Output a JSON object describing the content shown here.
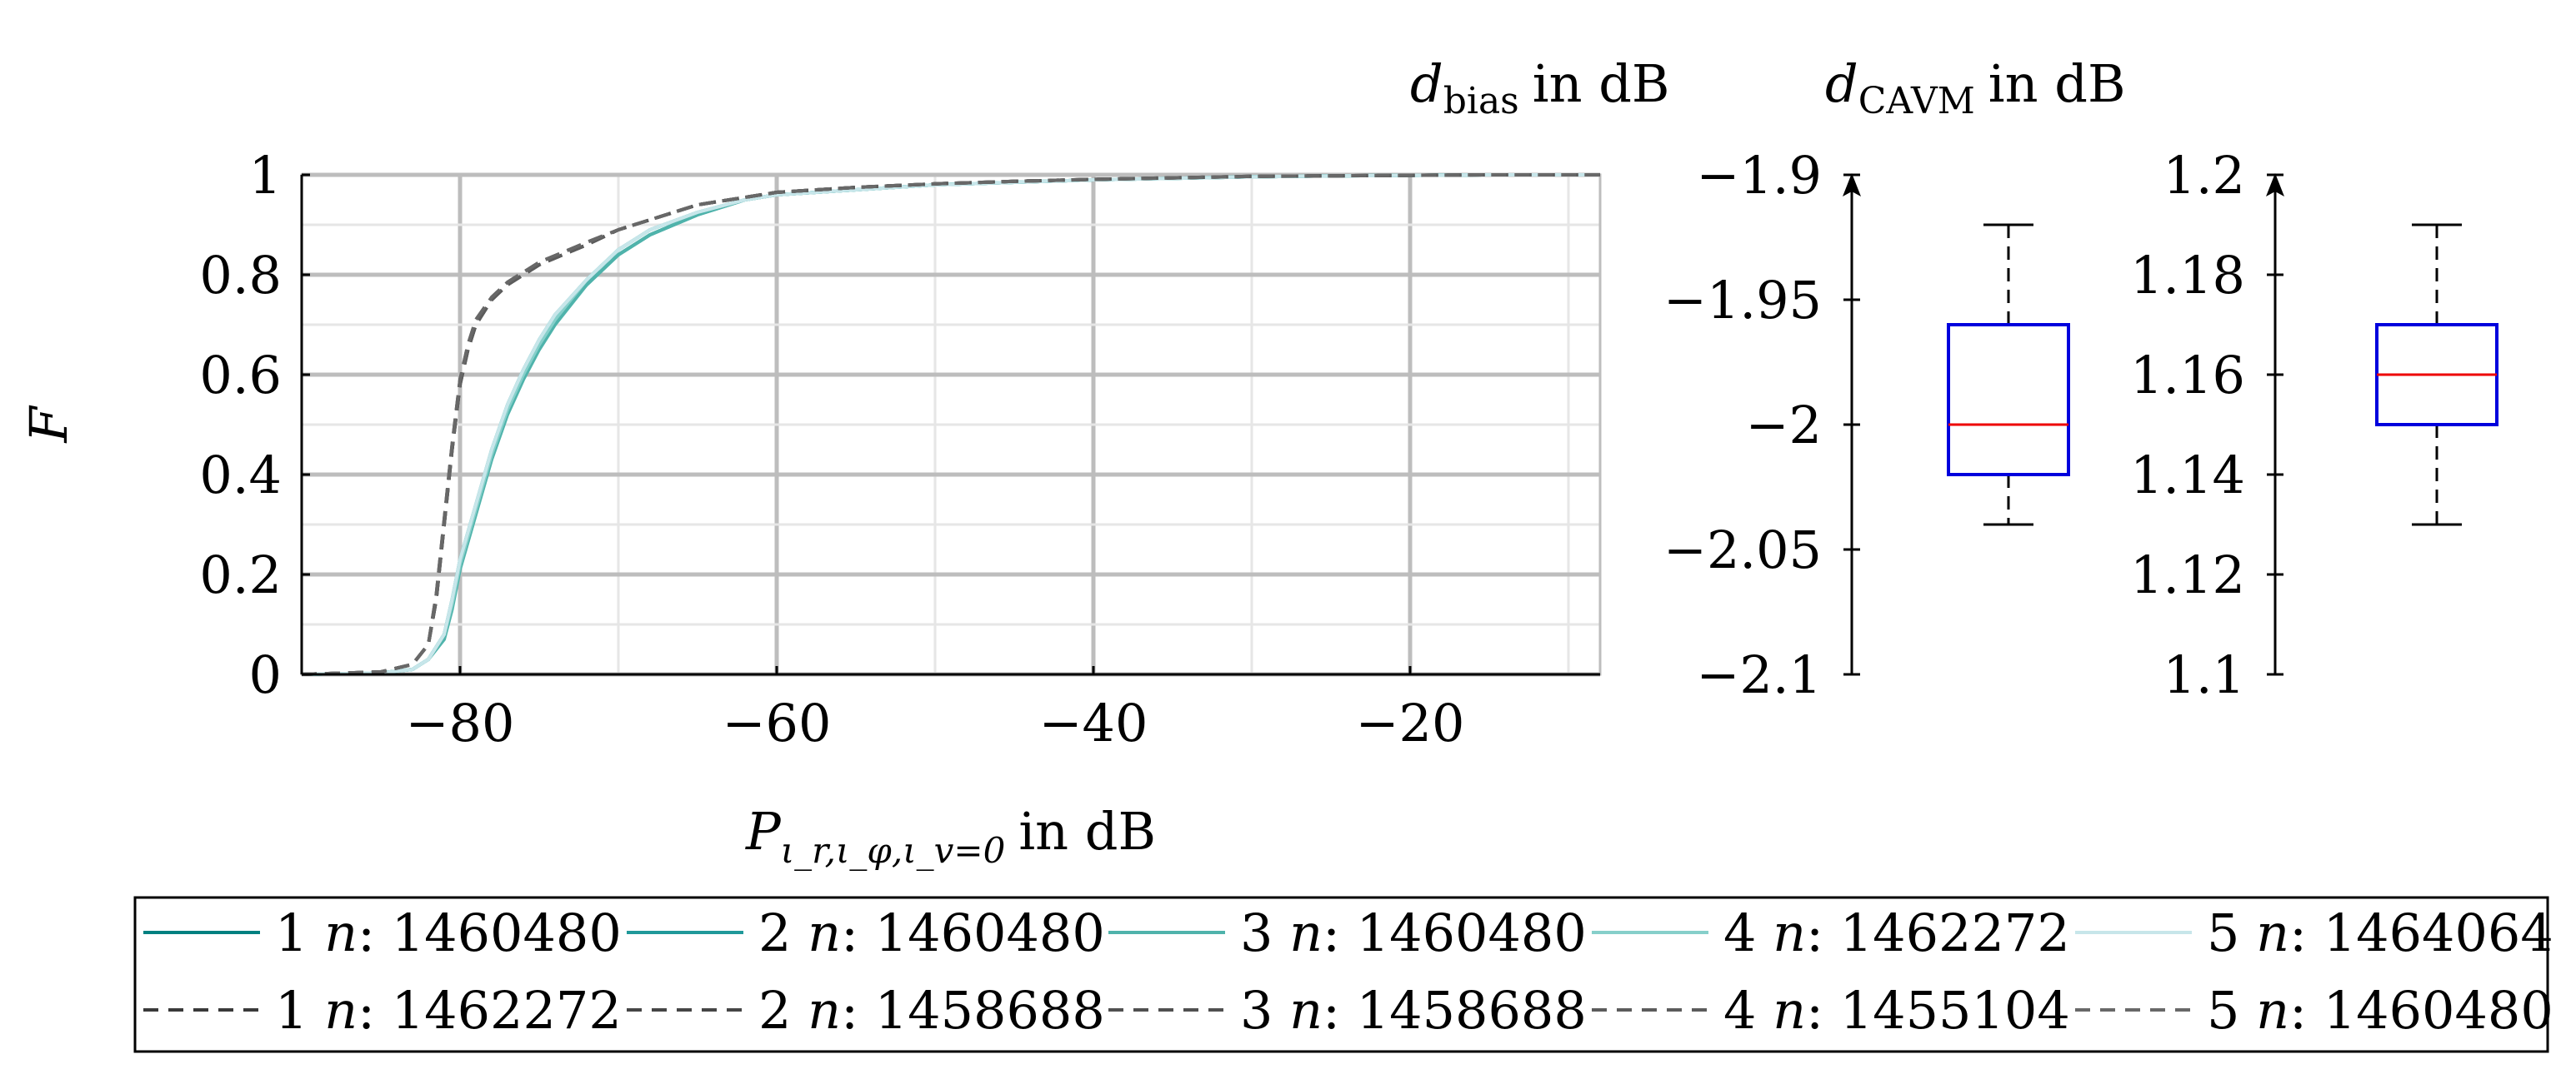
{
  "chart_data": [
    {
      "type": "line",
      "ylabel": "F",
      "xlabel": {
        "base": "P",
        "subscript": "ι_r,ι_φ,ι_v=0",
        "suffix": "in dB"
      },
      "xlim": [
        -90,
        -8
      ],
      "ylim": [
        0,
        1
      ],
      "xticks": [
        -80,
        -60,
        -40,
        -20
      ],
      "xtick_labels": [
        "−80",
        "−60",
        "−40",
        "−20"
      ],
      "yticks": [
        0,
        0.2,
        0.4,
        0.6,
        0.8,
        1
      ],
      "ytick_labels": [
        "0",
        "0.2",
        "0.4",
        "0.6",
        "0.8",
        "1"
      ],
      "grid": true,
      "legend_position": "bottom",
      "legend_columns": 5,
      "series": [
        {
          "name": "1 n: 1460480",
          "color": "#008080",
          "dash": "solid",
          "x": [
            -90,
            -85,
            -83,
            -82,
            -81,
            -80.5,
            -80,
            -79,
            -78,
            -77,
            -76,
            -75,
            -74,
            -72,
            -70,
            -68,
            -65,
            -62,
            -60,
            -55,
            -50,
            -45,
            -40,
            -35,
            -30,
            -25,
            -20,
            -15,
            -10,
            -8
          ],
          "y": [
            0,
            0.003,
            0.01,
            0.03,
            0.08,
            0.14,
            0.22,
            0.33,
            0.44,
            0.53,
            0.6,
            0.66,
            0.71,
            0.78,
            0.84,
            0.88,
            0.92,
            0.95,
            0.96,
            0.97,
            0.98,
            0.985,
            0.99,
            0.993,
            0.996,
            0.998,
            0.999,
            1.0,
            1.0,
            1.0
          ]
        },
        {
          "name": "2 n: 1460480",
          "color": "#20999a",
          "dash": "solid",
          "x": [
            -90,
            -85,
            -83,
            -82,
            -81,
            -80.5,
            -80,
            -79,
            -78,
            -77,
            -76,
            -75,
            -74,
            -72,
            -70,
            -68,
            -65,
            -62,
            -60,
            -55,
            -50,
            -45,
            -40,
            -35,
            -30,
            -25,
            -20,
            -15,
            -10,
            -8
          ],
          "y": [
            0,
            0.003,
            0.01,
            0.03,
            0.08,
            0.15,
            0.23,
            0.34,
            0.45,
            0.54,
            0.61,
            0.67,
            0.72,
            0.79,
            0.85,
            0.89,
            0.925,
            0.95,
            0.96,
            0.97,
            0.98,
            0.985,
            0.99,
            0.993,
            0.996,
            0.998,
            0.999,
            1.0,
            1.0,
            1.0
          ]
        },
        {
          "name": "3 n: 1460480",
          "color": "#4fb3ab",
          "dash": "solid",
          "x": [
            -90,
            -85,
            -83,
            -82,
            -81,
            -80.5,
            -80,
            -79,
            -78,
            -77,
            -76,
            -75,
            -74,
            -72,
            -70,
            -68,
            -65,
            -62,
            -60,
            -55,
            -50,
            -45,
            -40,
            -35,
            -30,
            -25,
            -20,
            -15,
            -10,
            -8
          ],
          "y": [
            0,
            0.003,
            0.01,
            0.03,
            0.07,
            0.13,
            0.21,
            0.32,
            0.43,
            0.52,
            0.59,
            0.65,
            0.7,
            0.78,
            0.84,
            0.88,
            0.92,
            0.95,
            0.96,
            0.97,
            0.98,
            0.985,
            0.99,
            0.993,
            0.996,
            0.998,
            0.999,
            1.0,
            1.0,
            1.0
          ]
        },
        {
          "name": "4 n: 1462272",
          "color": "#86cfca",
          "dash": "solid",
          "x": [
            -90,
            -85,
            -83,
            -82,
            -81,
            -80.5,
            -80,
            -79,
            -78,
            -77,
            -76,
            -75,
            -74,
            -72,
            -70,
            -68,
            -65,
            -62,
            -60,
            -55,
            -50,
            -45,
            -40,
            -35,
            -30,
            -25,
            -20,
            -15,
            -10,
            -8
          ],
          "y": [
            0,
            0.003,
            0.01,
            0.03,
            0.08,
            0.14,
            0.22,
            0.33,
            0.44,
            0.53,
            0.6,
            0.66,
            0.71,
            0.79,
            0.85,
            0.89,
            0.925,
            0.95,
            0.96,
            0.97,
            0.98,
            0.985,
            0.99,
            0.993,
            0.996,
            0.998,
            0.999,
            1.0,
            1.0,
            1.0
          ]
        },
        {
          "name": "5 n: 1464064",
          "color": "#c7e6ea",
          "dash": "solid",
          "x": [
            -90,
            -85,
            -83,
            -82,
            -81,
            -80.5,
            -80,
            -79,
            -78,
            -77,
            -76,
            -75,
            -74,
            -72,
            -70,
            -68,
            -65,
            -62,
            -60,
            -55,
            -50,
            -45,
            -40,
            -35,
            -30,
            -25,
            -20,
            -15,
            -10,
            -8
          ],
          "y": [
            0,
            0.003,
            0.01,
            0.03,
            0.08,
            0.15,
            0.23,
            0.34,
            0.45,
            0.54,
            0.61,
            0.67,
            0.72,
            0.79,
            0.85,
            0.89,
            0.925,
            0.95,
            0.96,
            0.97,
            0.98,
            0.985,
            0.99,
            0.993,
            0.996,
            0.998,
            0.999,
            1.0,
            1.0,
            1.0
          ]
        },
        {
          "name": "1 n: 1462272",
          "color": "#3a3a3a",
          "dash": "dashed",
          "x": [
            -90,
            -85,
            -83,
            -82,
            -81.5,
            -81,
            -80.5,
            -80,
            -79.5,
            -79,
            -78,
            -77,
            -76,
            -75,
            -72,
            -70,
            -68,
            -65,
            -62,
            -60,
            -55,
            -50,
            -45,
            -40,
            -35,
            -30,
            -25,
            -20,
            -15,
            -10,
            -8
          ],
          "y": [
            0,
            0.005,
            0.02,
            0.06,
            0.15,
            0.3,
            0.45,
            0.58,
            0.65,
            0.7,
            0.75,
            0.78,
            0.8,
            0.82,
            0.86,
            0.89,
            0.91,
            0.94,
            0.955,
            0.965,
            0.975,
            0.982,
            0.987,
            0.991,
            0.994,
            0.997,
            0.998,
            0.999,
            1.0,
            1.0,
            1.0
          ]
        },
        {
          "name": "2 n: 1458688",
          "color": "#454545",
          "dash": "dashed",
          "x": [
            -90,
            -85,
            -83,
            -82,
            -81.5,
            -81,
            -80.5,
            -80,
            -79.5,
            -79,
            -78,
            -77,
            -76,
            -75,
            -72,
            -70,
            -68,
            -65,
            -62,
            -60,
            -55,
            -50,
            -45,
            -40,
            -35,
            -30,
            -25,
            -20,
            -15,
            -10,
            -8
          ],
          "y": [
            0,
            0.005,
            0.02,
            0.06,
            0.16,
            0.31,
            0.46,
            0.59,
            0.66,
            0.71,
            0.755,
            0.785,
            0.805,
            0.825,
            0.865,
            0.89,
            0.91,
            0.94,
            0.955,
            0.965,
            0.975,
            0.982,
            0.987,
            0.991,
            0.994,
            0.997,
            0.998,
            0.999,
            1.0,
            1.0,
            1.0
          ]
        },
        {
          "name": "3 n: 1458688",
          "color": "#505050",
          "dash": "dashed",
          "x": [
            -90,
            -85,
            -83,
            -82,
            -81.5,
            -81,
            -80.5,
            -80,
            -79.5,
            -79,
            -78,
            -77,
            -76,
            -75,
            -72,
            -70,
            -68,
            -65,
            -62,
            -60,
            -55,
            -50,
            -45,
            -40,
            -35,
            -30,
            -25,
            -20,
            -15,
            -10,
            -8
          ],
          "y": [
            0,
            0.005,
            0.02,
            0.06,
            0.15,
            0.3,
            0.45,
            0.58,
            0.65,
            0.7,
            0.75,
            0.78,
            0.8,
            0.82,
            0.86,
            0.89,
            0.91,
            0.94,
            0.955,
            0.965,
            0.975,
            0.982,
            0.987,
            0.991,
            0.994,
            0.997,
            0.998,
            0.999,
            1.0,
            1.0,
            1.0
          ]
        },
        {
          "name": "4 n: 1455104",
          "color": "#5c5c5c",
          "dash": "dashed",
          "x": [
            -90,
            -85,
            -83,
            -82,
            -81.5,
            -81,
            -80.5,
            -80,
            -79.5,
            -79,
            -78,
            -77,
            -76,
            -75,
            -72,
            -70,
            -68,
            -65,
            -62,
            -60,
            -55,
            -50,
            -45,
            -40,
            -35,
            -30,
            -25,
            -20,
            -15,
            -10,
            -8
          ],
          "y": [
            0,
            0.005,
            0.02,
            0.06,
            0.15,
            0.3,
            0.45,
            0.58,
            0.65,
            0.7,
            0.75,
            0.78,
            0.8,
            0.82,
            0.86,
            0.89,
            0.91,
            0.94,
            0.955,
            0.965,
            0.975,
            0.982,
            0.987,
            0.991,
            0.994,
            0.997,
            0.998,
            0.999,
            1.0,
            1.0,
            1.0
          ]
        },
        {
          "name": "5 n: 1460480",
          "color": "#686868",
          "dash": "dashed",
          "x": [
            -90,
            -85,
            -83,
            -82,
            -81.5,
            -81,
            -80.5,
            -80,
            -79.5,
            -79,
            -78,
            -77,
            -76,
            -75,
            -72,
            -70,
            -68,
            -65,
            -62,
            -60,
            -55,
            -50,
            -45,
            -40,
            -35,
            -30,
            -25,
            -20,
            -15,
            -10,
            -8
          ],
          "y": [
            0,
            0.005,
            0.02,
            0.06,
            0.16,
            0.31,
            0.46,
            0.59,
            0.66,
            0.71,
            0.755,
            0.785,
            0.805,
            0.825,
            0.865,
            0.89,
            0.91,
            0.94,
            0.955,
            0.965,
            0.975,
            0.982,
            0.987,
            0.991,
            0.994,
            0.997,
            0.998,
            0.999,
            1.0,
            1.0,
            1.0
          ]
        }
      ]
    },
    {
      "type": "box",
      "title": {
        "base": "d",
        "subscript": "bias",
        "suffix": "in dB"
      },
      "ylim": [
        -2.1,
        -1.9
      ],
      "yticks": [
        -1.9,
        -1.95,
        -2,
        -2.05,
        -2.1
      ],
      "ytick_labels": [
        "−1.9",
        "−1.95",
        "−2",
        "−2.05",
        "−2.1"
      ],
      "box": {
        "whisker_high": -1.92,
        "q3": -1.96,
        "median": -2.0,
        "q1": -2.02,
        "whisker_low": -2.04
      },
      "box_color": "#0000dd",
      "median_color": "#ee0000"
    },
    {
      "type": "box",
      "title": {
        "base": "d",
        "subscript": "CAVM",
        "suffix": "in dB"
      },
      "ylim": [
        1.1,
        1.2
      ],
      "yticks": [
        1.2,
        1.18,
        1.16,
        1.14,
        1.12,
        1.1
      ],
      "ytick_labels": [
        "1.2",
        "1.18",
        "1.16",
        "1.14",
        "1.12",
        "1.1"
      ],
      "box": {
        "whisker_high": 1.19,
        "q3": 1.17,
        "median": 1.16,
        "q1": 1.15,
        "whisker_low": 1.13
      },
      "box_color": "#0000dd",
      "median_color": "#ee0000"
    }
  ]
}
